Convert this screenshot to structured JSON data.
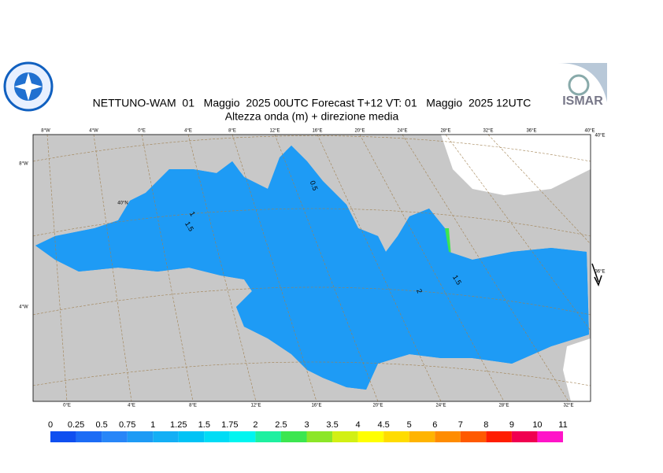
{
  "header": {
    "title": "NETTUNO-WAM  01   Maggio  2025 00UTC Forecast T+12 VT: 01   Maggio  2025 12UTC",
    "subtitle": "Altezza onda (m) + direzione media",
    "logo_text": "ISMAR"
  },
  "map": {
    "top_labels": [
      "8°W",
      "4°W",
      "0°E",
      "4°E",
      "8°E",
      "12°E",
      "16°E",
      "20°E",
      "24°E",
      "28°E",
      "32°E",
      "36°E",
      "40°E"
    ],
    "bottom_labels": [
      "0°E",
      "4°E",
      "8°E",
      "12°E",
      "16°E",
      "20°E",
      "24°E",
      "28°E",
      "32°E"
    ],
    "left_labels": [
      "8°W",
      "4°W"
    ],
    "right_labels": [
      "40°E",
      "36°E"
    ],
    "lat_label": "40°N",
    "contour_labels": [
      "1",
      "1.5",
      "0.5",
      "2",
      "1.5"
    ]
  },
  "colorbar": {
    "levels": [
      0,
      0.25,
      0.5,
      0.75,
      1,
      1.25,
      1.5,
      1.75,
      2,
      2.5,
      3,
      3.5,
      4,
      4.5,
      5,
      6,
      7,
      8,
      9,
      10,
      11
    ],
    "colors": [
      "#0f4ff0",
      "#1c6cf5",
      "#2886f8",
      "#1e9bf5",
      "#14aff5",
      "#00c3f5",
      "#00dcf5",
      "#00f5f0",
      "#1ef0a0",
      "#3ce650",
      "#8ce628",
      "#d2f014",
      "#ffff00",
      "#ffdc00",
      "#ffb400",
      "#ff8c00",
      "#ff5a00",
      "#ff1e00",
      "#f00050",
      "#ff14c8"
    ]
  }
}
